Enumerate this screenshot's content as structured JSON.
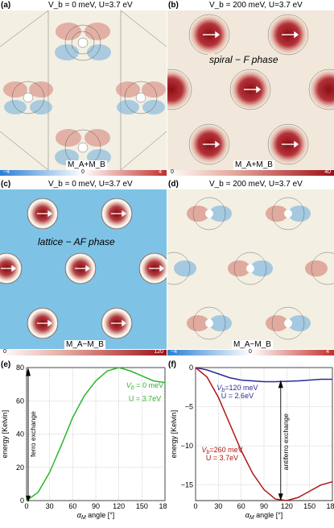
{
  "panels": {
    "a": {
      "label": "(a)",
      "title": "V_b = 0 meV, U=3.7 eV",
      "colorbar_min": "−4",
      "colorbar_mid": "0",
      "colorbar_max": "4",
      "map_label": "M_A+M_B"
    },
    "b": {
      "label": "(b)",
      "title": "V_b = 200 meV, U=3.7 eV",
      "phase_label": "spiral − F phase",
      "colorbar_min": "0",
      "colorbar_max": "40",
      "map_label": "M_A+M_B"
    },
    "c": {
      "label": "(c)",
      "title": "V_b = 0 meV, U=3.7 eV",
      "phase_label": "lattice − AF phase",
      "colorbar_min": "0",
      "colorbar_max": "120",
      "map_label": "M_A−M_B"
    },
    "d": {
      "label": "(d)",
      "title": "V_b = 200 meV, U=3.7 eV",
      "colorbar_min": "−4",
      "colorbar_mid": "0",
      "colorbar_max": "4",
      "map_label": "M_A−M_B"
    },
    "e": {
      "label": "(e)",
      "annotation": "ferro exchange",
      "legend_line1": "V_b = 0 meV",
      "legend_line2": "U = 3.7eV"
    },
    "f": {
      "label": "(f)",
      "annotation": "antiferro exchange",
      "legend_blue_line1": "V_b=120 meV",
      "legend_blue_line2": "U = 2.6eV",
      "legend_red_line1": "V_b=260 meV",
      "legend_red_line2": "U = 3.7eV"
    }
  },
  "colors": {
    "green": "#2db52d",
    "blue": "#2a2a9a",
    "red": "#b01515",
    "af_bg": "#7ec3e6",
    "map_bg": "#f3efe2"
  },
  "chart_data": [
    {
      "type": "line",
      "panel": "e",
      "xlabel": "α_M angle [°]",
      "ylabel": "energy [Kelvin]",
      "xlim": [
        0,
        180
      ],
      "ylim": [
        0,
        80
      ],
      "xticks": [
        "0",
        "30",
        "60",
        "90",
        "120",
        "150",
        "180"
      ],
      "yticks": [
        "0",
        "20",
        "40",
        "60",
        "80"
      ],
      "grid": true,
      "series": [
        {
          "name": "V_b = 0 meV, U = 3.7eV",
          "color": "#2db52d",
          "x": [
            0,
            15,
            30,
            45,
            60,
            75,
            90,
            105,
            120,
            135,
            150,
            165,
            180
          ],
          "y": [
            0,
            5,
            17,
            33,
            50,
            63,
            72,
            78,
            80,
            78,
            75,
            72,
            71
          ]
        }
      ]
    },
    {
      "type": "line",
      "panel": "f",
      "xlabel": "α_M angle [°]",
      "ylabel": "energy [Kelvin]",
      "xlim": [
        0,
        180
      ],
      "ylim": [
        -17,
        0
      ],
      "xticks": [
        "0",
        "30",
        "60",
        "90",
        "120",
        "150",
        "180"
      ],
      "yticks": [
        "0",
        "−5",
        "−10",
        "−15"
      ],
      "grid": true,
      "series": [
        {
          "name": "V_b=120 meV, U = 2.6eV",
          "color": "#2a2a9a",
          "x": [
            0,
            15,
            30,
            45,
            60,
            75,
            90,
            105,
            120,
            135,
            150,
            165,
            180
          ],
          "y": [
            0,
            -0.3,
            -0.8,
            -1.3,
            -1.6,
            -1.7,
            -1.8,
            -1.8,
            -1.75,
            -1.7,
            -1.6,
            -1.5,
            -1.5
          ]
        },
        {
          "name": "V_b=260 meV, U = 3.7eV",
          "color": "#b01515",
          "x": [
            0,
            15,
            30,
            45,
            60,
            75,
            90,
            105,
            120,
            135,
            150,
            165,
            180
          ],
          "y": [
            0,
            -1.2,
            -3.8,
            -7.2,
            -10.6,
            -13.5,
            -15.6,
            -16.8,
            -17.0,
            -16.6,
            -15.8,
            -15.0,
            -14.6
          ]
        }
      ]
    }
  ]
}
